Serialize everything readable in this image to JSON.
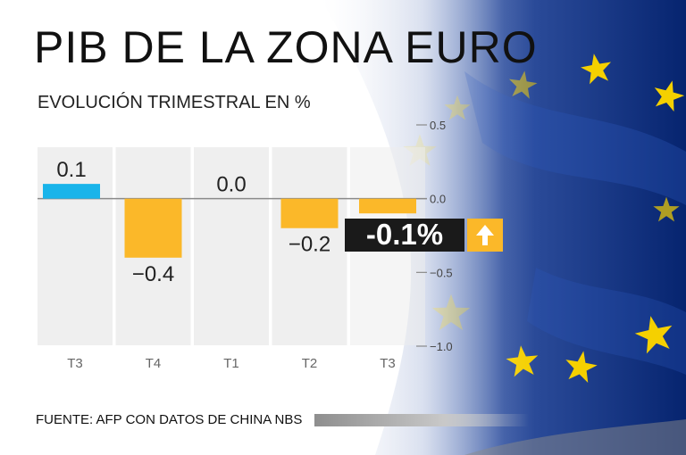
{
  "title": "PIB DE LA ZONA EURO",
  "subtitle": "EVOLUCIÓN TRIMESTRAL EN %",
  "source": "FUENTE: AFP CON DATOS DE CHINA NBS",
  "highlight": {
    "value": "-0.1%",
    "icon": "arrow-up-icon"
  },
  "colors": {
    "positive": "#19b4ea",
    "negative": "#fbb829",
    "badge": "#1a1a1a",
    "flag": "#0b2f8a",
    "star": "#f5d000"
  },
  "chart_data": {
    "type": "bar",
    "title": "PIB DE LA ZONA EURO",
    "subtitle": "EVOLUCIÓN TRIMESTRAL EN %",
    "categories": [
      "T3",
      "T4",
      "T1",
      "T2",
      "T3"
    ],
    "values": [
      0.1,
      -0.4,
      0.0,
      -0.2,
      -0.1
    ],
    "value_labels": [
      "0.1",
      "−0.4",
      "0.0",
      "−0.2",
      ""
    ],
    "ylim": [
      -1.0,
      0.5
    ],
    "yticks": [
      0.5,
      0.0,
      -0.5,
      -1.0
    ],
    "ytick_labels": [
      "0.5",
      "0.0",
      "−0.5",
      "−1.0"
    ],
    "xlabel": "",
    "ylabel": ""
  }
}
